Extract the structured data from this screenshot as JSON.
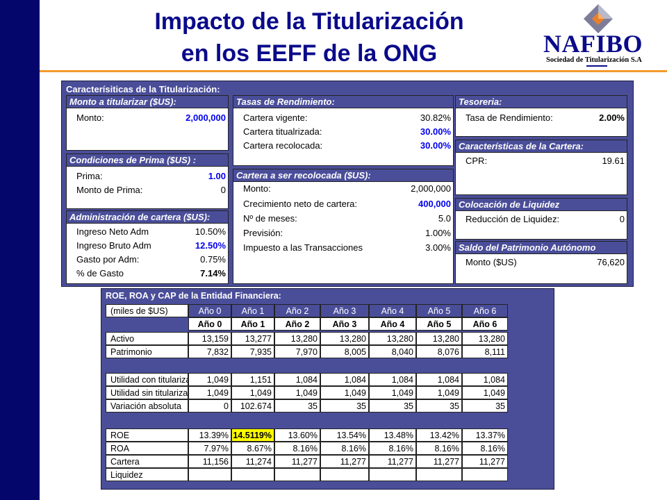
{
  "title": {
    "line1": "Impacto de la Titularización",
    "line2": "en los EEFF de la ONG"
  },
  "logo": {
    "brand": "NAFIBO",
    "sub": "Sociedad de Titularización S.A"
  },
  "colors": {
    "navy": "#04066c",
    "panel": "#4a4e99",
    "accent": "#f39a2a",
    "title": "#0a0a8a",
    "highlight": "#ffff00"
  },
  "caracteristicas": {
    "title": "Caracterísiticas de la Titularización:",
    "monto": {
      "header": "Monto a titularizar ($US):",
      "rows": [
        {
          "label": "Monto:",
          "value": "2,000,000"
        }
      ]
    },
    "prima": {
      "header": "Condiciones de Prima ($US) :",
      "rows": [
        {
          "label": "Prima:",
          "value": "1.00"
        },
        {
          "label": "Monto de Prima:",
          "value": "0"
        }
      ]
    },
    "admin": {
      "header": "Administración de cartera ($US):",
      "rows": [
        {
          "label": "Ingreso Neto Adm",
          "value": "10.50%"
        },
        {
          "label": "Ingreso Bruto Adm",
          "value": "12.50%"
        },
        {
          "label": "Gasto por Adm:",
          "value": "0.75%"
        },
        {
          "label": "% de Gasto",
          "value": "7.14%"
        }
      ]
    },
    "tasas": {
      "header": "Tasas de Rendimiento:",
      "rows": [
        {
          "label": "Cartera vigente:",
          "value": "30.82%"
        },
        {
          "label": "Cartera titualrizada:",
          "value": "30.00%"
        },
        {
          "label": "Cartera recolocada:",
          "value": "30.00%"
        }
      ]
    },
    "recolocada": {
      "header": "Cartera a ser recolocada ($US):",
      "rows": [
        {
          "label": "Monto:",
          "value": "2,000,000"
        },
        {
          "label": "Crecimiento neto de cartera:",
          "value": "400,000"
        },
        {
          "label": "Nº de meses:",
          "value": "5.0"
        },
        {
          "label": "Previsión:",
          "value": "1.00%"
        },
        {
          "label": "Impuesto a las Transacciones",
          "value": "3.00%"
        }
      ]
    },
    "tesoreria": {
      "header": "Tesoreria:",
      "rows": [
        {
          "label": "Tasa de Rendimiento:",
          "value": "2.00%"
        }
      ]
    },
    "cartera": {
      "header": "Características de la Cartera:",
      "rows": [
        {
          "label": "CPR:",
          "value": "19.61"
        }
      ]
    },
    "liquidez": {
      "header": "Colocación de Liquidez",
      "rows": [
        {
          "label": "Reducción de Liquidez:",
          "value": "0"
        }
      ]
    },
    "patrimonio": {
      "header": "Saldo del Patrimonio Autónomo",
      "rows": [
        {
          "label": "Monto ($US)",
          "value": "76,620"
        }
      ]
    }
  },
  "roe_table": {
    "title": "ROE, ROA y CAP de la Entidad Financiera:",
    "units": "(miles de $US)",
    "years": [
      "Año 0",
      "Año 1",
      "Año 2",
      "Año 3",
      "Año 4",
      "Año 5",
      "Año 6"
    ],
    "group1": [
      {
        "label": "Activo",
        "values": [
          "13,159",
          "13,277",
          "13,280",
          "13,280",
          "13,280",
          "13,280",
          "13,280"
        ]
      },
      {
        "label": "Patrimonio",
        "values": [
          "7,832",
          "7,935",
          "7,970",
          "8,005",
          "8,040",
          "8,076",
          "8,111"
        ]
      }
    ],
    "group2": [
      {
        "label": "Utilidad con titularización",
        "values": [
          "1,049",
          "1,151",
          "1,084",
          "1,084",
          "1,084",
          "1,084",
          "1,084"
        ]
      },
      {
        "label": "Utilidad sin titularización",
        "values": [
          "1,049",
          "1,049",
          "1,049",
          "1,049",
          "1,049",
          "1,049",
          "1,049"
        ]
      },
      {
        "label": "Variación absoluta",
        "values": [
          "0",
          "102.674",
          "35",
          "35",
          "35",
          "35",
          "35"
        ]
      }
    ],
    "group3": [
      {
        "label": "ROE",
        "values": [
          "13.39%",
          "14.5119%",
          "13.60%",
          "13.54%",
          "13.48%",
          "13.42%",
          "13.37%"
        ]
      },
      {
        "label": "ROA",
        "values": [
          "7.97%",
          "8.67%",
          "8.16%",
          "8.16%",
          "8.16%",
          "8.16%",
          "8.16%"
        ]
      },
      {
        "label": "Cartera",
        "values": [
          "11,156",
          "11,274",
          "11,277",
          "11,277",
          "11,277",
          "11,277",
          "11,277"
        ]
      },
      {
        "label": "Liquidez",
        "values": [
          "",
          "",
          "",
          "",
          "",
          "",
          ""
        ]
      }
    ]
  }
}
